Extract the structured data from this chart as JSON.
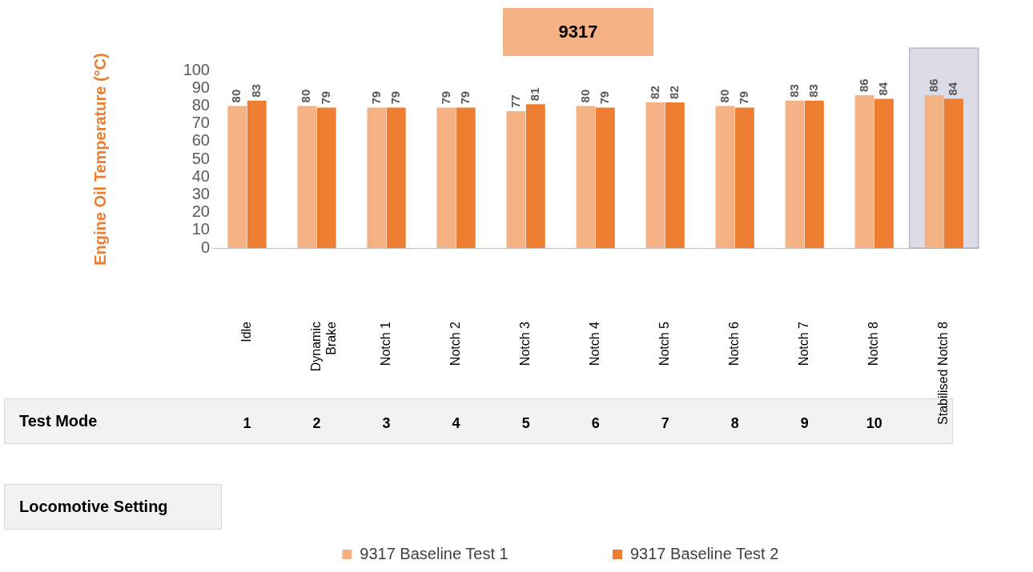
{
  "chart_data": {
    "type": "bar",
    "title": "9317",
    "ylabel": "Engine Oil Temperature (°C)",
    "categories": [
      "Idle",
      "Dynamic Brake",
      "Notch 1",
      "Notch 2",
      "Notch 3",
      "Notch 4",
      "Notch 5",
      "Notch 6",
      "Notch 7",
      "Notch 8",
      "Stabilised Notch 8"
    ],
    "series": [
      {
        "name": "9317 Baseline Test 1",
        "color": "#f4b183",
        "values": [
          80,
          80,
          79,
          79,
          77,
          80,
          82,
          80,
          83,
          86,
          86
        ]
      },
      {
        "name": "9317 Baseline Test 2",
        "color": "#ed7d31",
        "values": [
          83,
          79,
          79,
          79,
          81,
          79,
          82,
          79,
          83,
          84,
          84
        ]
      }
    ],
    "ylim": [
      0,
      100
    ],
    "yticks": [
      0,
      10,
      20,
      30,
      40,
      50,
      60,
      70,
      80,
      90,
      100
    ],
    "grid": false,
    "legend": "bottom",
    "data_labels": true,
    "bands": [
      {
        "axis": "x",
        "from": "Stabilised Notch 8",
        "to": "Stabilised Notch 8",
        "color": "#dcdbe8"
      }
    ],
    "annotations": [
      "Test Mode",
      "Locomotive Setting",
      "1",
      "2",
      "3",
      "4",
      "5",
      "6",
      "7",
      "8",
      "9",
      "10"
    ]
  }
}
